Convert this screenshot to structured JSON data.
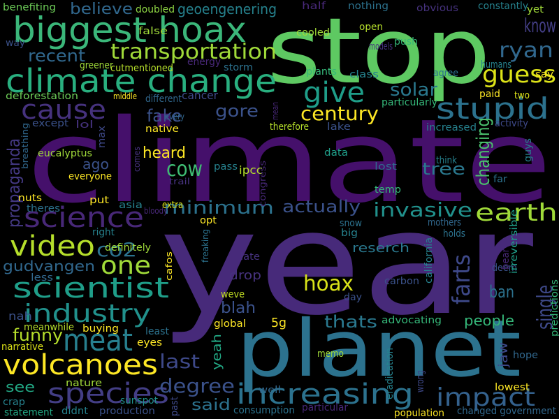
{
  "words": [
    {
      "text": "climate",
      "color": "#45106b"
    },
    {
      "text": "year",
      "color": "#472a7a"
    },
    {
      "text": "stop",
      "color": "#5ec962"
    },
    {
      "text": "planet",
      "color": "#2c728e"
    },
    {
      "text": "biggest hoax",
      "color": "#3bb77a"
    },
    {
      "text": "climate change",
      "color": "#29af7f"
    },
    {
      "text": "give",
      "color": "#1f9e89"
    },
    {
      "text": "guess",
      "color": "#dde318"
    },
    {
      "text": "stupid",
      "color": "#2c728e"
    },
    {
      "text": "cause",
      "color": "#46327e"
    },
    {
      "text": "science",
      "color": "#482878"
    },
    {
      "text": "video",
      "color": "#b5de2b"
    },
    {
      "text": "one",
      "color": "#a0da39"
    },
    {
      "text": "scientist",
      "color": "#1f9e89"
    },
    {
      "text": "industry",
      "color": "#21918c"
    },
    {
      "text": "meat",
      "color": "#277f8e"
    },
    {
      "text": "volcanoes",
      "color": "#fde725"
    },
    {
      "text": "species",
      "color": "#433e85"
    },
    {
      "text": "increasing",
      "color": "#2c728e"
    },
    {
      "text": "impact",
      "color": "#34618d"
    },
    {
      "text": "earth",
      "color": "#a0da39"
    },
    {
      "text": "invasive",
      "color": "#21918c"
    },
    {
      "text": "farts",
      "color": "#3e4989"
    },
    {
      "text": "single",
      "color": "#3e4989"
    },
    {
      "text": "hoax",
      "color": "#d8e219"
    },
    {
      "text": "transportation",
      "color": "#a0da39"
    },
    {
      "text": "know",
      "color": "#433e85"
    },
    {
      "text": "ryan",
      "color": "#31688e"
    },
    {
      "text": "recent",
      "color": "#31688e"
    },
    {
      "text": "believe",
      "color": "#31688e"
    },
    {
      "text": "geoengenering",
      "color": "#26828e"
    },
    {
      "text": "doubled",
      "color": "#8fd744"
    },
    {
      "text": "benefiting",
      "color": "#6ece58"
    },
    {
      "text": "century",
      "color": "#fde725"
    },
    {
      "text": "solar",
      "color": "#2a788e"
    },
    {
      "text": "fake",
      "color": "#3b528b"
    },
    {
      "text": "gore",
      "color": "#3b528b"
    },
    {
      "text": "heard",
      "color": "#fde725"
    },
    {
      "text": "cow",
      "color": "#3fbc73"
    },
    {
      "text": "ago",
      "color": "#3b528b"
    },
    {
      "text": "tree",
      "color": "#2a788e"
    },
    {
      "text": "changing",
      "color": "#4ac16d"
    },
    {
      "text": "minimum",
      "color": "#2c728e"
    },
    {
      "text": "actually",
      "color": "#3b528b"
    },
    {
      "text": "propaganda",
      "color": "#443983"
    },
    {
      "text": "co2",
      "color": "#2c728e"
    },
    {
      "text": "gudvangen",
      "color": "#31688e"
    },
    {
      "text": "reserch",
      "color": "#2a788e"
    },
    {
      "text": "last",
      "color": "#3e4989"
    },
    {
      "text": "degree",
      "color": "#3b528b"
    },
    {
      "text": "said",
      "color": "#2c728e"
    },
    {
      "text": "funny",
      "color": "#b5de2b"
    },
    {
      "text": "thats",
      "color": "#2a788e"
    },
    {
      "text": "blah",
      "color": "#3b528b"
    },
    {
      "text": "people",
      "color": "#35b779"
    },
    {
      "text": "ban",
      "color": "#2c728e"
    },
    {
      "text": "5g",
      "color": "#fde725"
    },
    {
      "text": "see",
      "color": "#22a884"
    },
    {
      "text": "yeah",
      "color": "#22a884"
    },
    {
      "text": "jaw",
      "color": "#3e4989"
    },
    {
      "text": "drop",
      "color": "#46327e"
    },
    {
      "text": "late",
      "color": "#46327e"
    },
    {
      "text": "weve",
      "color": "#c2df23"
    },
    {
      "text": "hope",
      "color": "#31688e"
    },
    {
      "text": "lowest",
      "color": "#fde725"
    },
    {
      "text": "memo",
      "color": "#a0da39"
    },
    {
      "text": "changed government",
      "color": "#31688e"
    },
    {
      "text": "population",
      "color": "#fde725"
    },
    {
      "text": "consumption",
      "color": "#2c728e"
    },
    {
      "text": "statement",
      "color": "#22a884"
    },
    {
      "text": "crap",
      "color": "#26828e"
    },
    {
      "text": "nature",
      "color": "#a0da39"
    },
    {
      "text": "didnt",
      "color": "#26828e"
    },
    {
      "text": "production",
      "color": "#3b528b"
    },
    {
      "text": "sunspot",
      "color": "#21918c"
    },
    {
      "text": "narrative",
      "color": "#dde318"
    },
    {
      "text": "eyes",
      "color": "#fde725"
    },
    {
      "text": "least",
      "color": "#2c728e"
    },
    {
      "text": "buying",
      "color": "#fde725"
    },
    {
      "text": "meanwhile",
      "color": "#b5de2b"
    },
    {
      "text": "nah",
      "color": "#3b528b"
    },
    {
      "text": "less",
      "color": "#31688e"
    },
    {
      "text": "right",
      "color": "#26828e"
    },
    {
      "text": "definitely",
      "color": "#a0da39"
    },
    {
      "text": "put",
      "color": "#fde725"
    },
    {
      "text": "asia",
      "color": "#26828e"
    },
    {
      "text": "extra",
      "color": "#dde318"
    },
    {
      "text": "bloody",
      "color": "#482878"
    },
    {
      "text": "nuts",
      "color": "#fde725"
    },
    {
      "text": "theres",
      "color": "#2c728e"
    },
    {
      "text": "everyone",
      "color": "#fde725"
    },
    {
      "text": "eucalyptus",
      "color": "#a0da39"
    },
    {
      "text": "max",
      "color": "#3e4989"
    },
    {
      "text": "lol",
      "color": "#46327e"
    },
    {
      "text": "except",
      "color": "#3b528b"
    },
    {
      "text": "native",
      "color": "#fde725"
    },
    {
      "text": "every",
      "color": "#31688e"
    },
    {
      "text": "cancer",
      "color": "#3e4989"
    },
    {
      "text": "different",
      "color": "#31688e"
    },
    {
      "text": "middle",
      "color": "#fde725"
    },
    {
      "text": "deforestation",
      "color": "#6ece58"
    },
    {
      "text": "greener",
      "color": "#a0da39"
    },
    {
      "text": "cutmentioned",
      "color": "#b5de2b"
    },
    {
      "text": "energy",
      "color": "#482878"
    },
    {
      "text": "storm",
      "color": "#2c728e"
    },
    {
      "text": "plants",
      "color": "#35b779"
    },
    {
      "text": "class",
      "color": "#26828e"
    },
    {
      "text": "agree",
      "color": "#2c728e"
    },
    {
      "text": "humans",
      "color": "#26828e"
    },
    {
      "text": "say",
      "color": "#fde725"
    },
    {
      "text": "two",
      "color": "#dde318"
    },
    {
      "text": "paid",
      "color": "#fde725"
    },
    {
      "text": "particularly",
      "color": "#35b779"
    },
    {
      "text": "increased",
      "color": "#26828e"
    },
    {
      "text": "activity",
      "color": "#3e4989"
    },
    {
      "text": "therefore",
      "color": "#b5de2b"
    },
    {
      "text": "lake",
      "color": "#3b528b"
    },
    {
      "text": "ipcc",
      "color": "#b5de2b"
    },
    {
      "text": "pass",
      "color": "#26828e"
    },
    {
      "text": "data",
      "color": "#1f9e89"
    },
    {
      "text": "think",
      "color": "#26828e"
    },
    {
      "text": "lost",
      "color": "#31688e"
    },
    {
      "text": "far",
      "color": "#2c728e"
    },
    {
      "text": "temp",
      "color": "#35b779"
    },
    {
      "text": "guys",
      "color": "#26828e"
    },
    {
      "text": "snow",
      "color": "#2c728e"
    },
    {
      "text": "big",
      "color": "#26828e"
    },
    {
      "text": "mothers",
      "color": "#31688e"
    },
    {
      "text": "holds",
      "color": "#2c728e"
    },
    {
      "text": "deem",
      "color": "#3b528b"
    },
    {
      "text": "carbon",
      "color": "#3b528b"
    },
    {
      "text": "day",
      "color": "#3b528b"
    },
    {
      "text": "advocating",
      "color": "#35b779"
    },
    {
      "text": "global",
      "color": "#fde725"
    },
    {
      "text": "well",
      "color": "#31688e"
    },
    {
      "text": "past",
      "color": "#3e4989"
    },
    {
      "text": "particular",
      "color": "#482878"
    },
    {
      "text": "irreversible",
      "color": "#1f9e89"
    },
    {
      "text": "predictions",
      "color": "#35b779"
    },
    {
      "text": "california",
      "color": "#26828e"
    },
    {
      "text": "eradication",
      "color": "#26828e"
    },
    {
      "text": "wrong",
      "color": "#3e4989"
    },
    {
      "text": "opt",
      "color": "#fde725"
    },
    {
      "text": "freaking",
      "color": "#2c728e"
    },
    {
      "text": "cafos",
      "color": "#fde725"
    },
    {
      "text": "models",
      "color": "#46327e"
    },
    {
      "text": "push",
      "color": "#35b779"
    },
    {
      "text": "cooled",
      "color": "#a0da39"
    },
    {
      "text": "open",
      "color": "#b5de2b"
    },
    {
      "text": "false",
      "color": "#a0da39"
    },
    {
      "text": "way",
      "color": "#3b528b"
    },
    {
      "text": "half",
      "color": "#482878"
    },
    {
      "text": "nothing",
      "color": "#2c728e"
    },
    {
      "text": "obvious",
      "color": "#46327e"
    },
    {
      "text": "constantly",
      "color": "#26828e"
    },
    {
      "text": "yet",
      "color": "#a0da39"
    },
    {
      "text": "bear",
      "color": "#482878"
    },
    {
      "text": "mean",
      "color": "#482878"
    },
    {
      "text": "congress",
      "color": "#482878"
    },
    {
      "text": "trail",
      "color": "#46327e"
    },
    {
      "text": "comes",
      "color": "#46327e"
    },
    {
      "text": "breathing",
      "color": "#31688e"
    }
  ]
}
